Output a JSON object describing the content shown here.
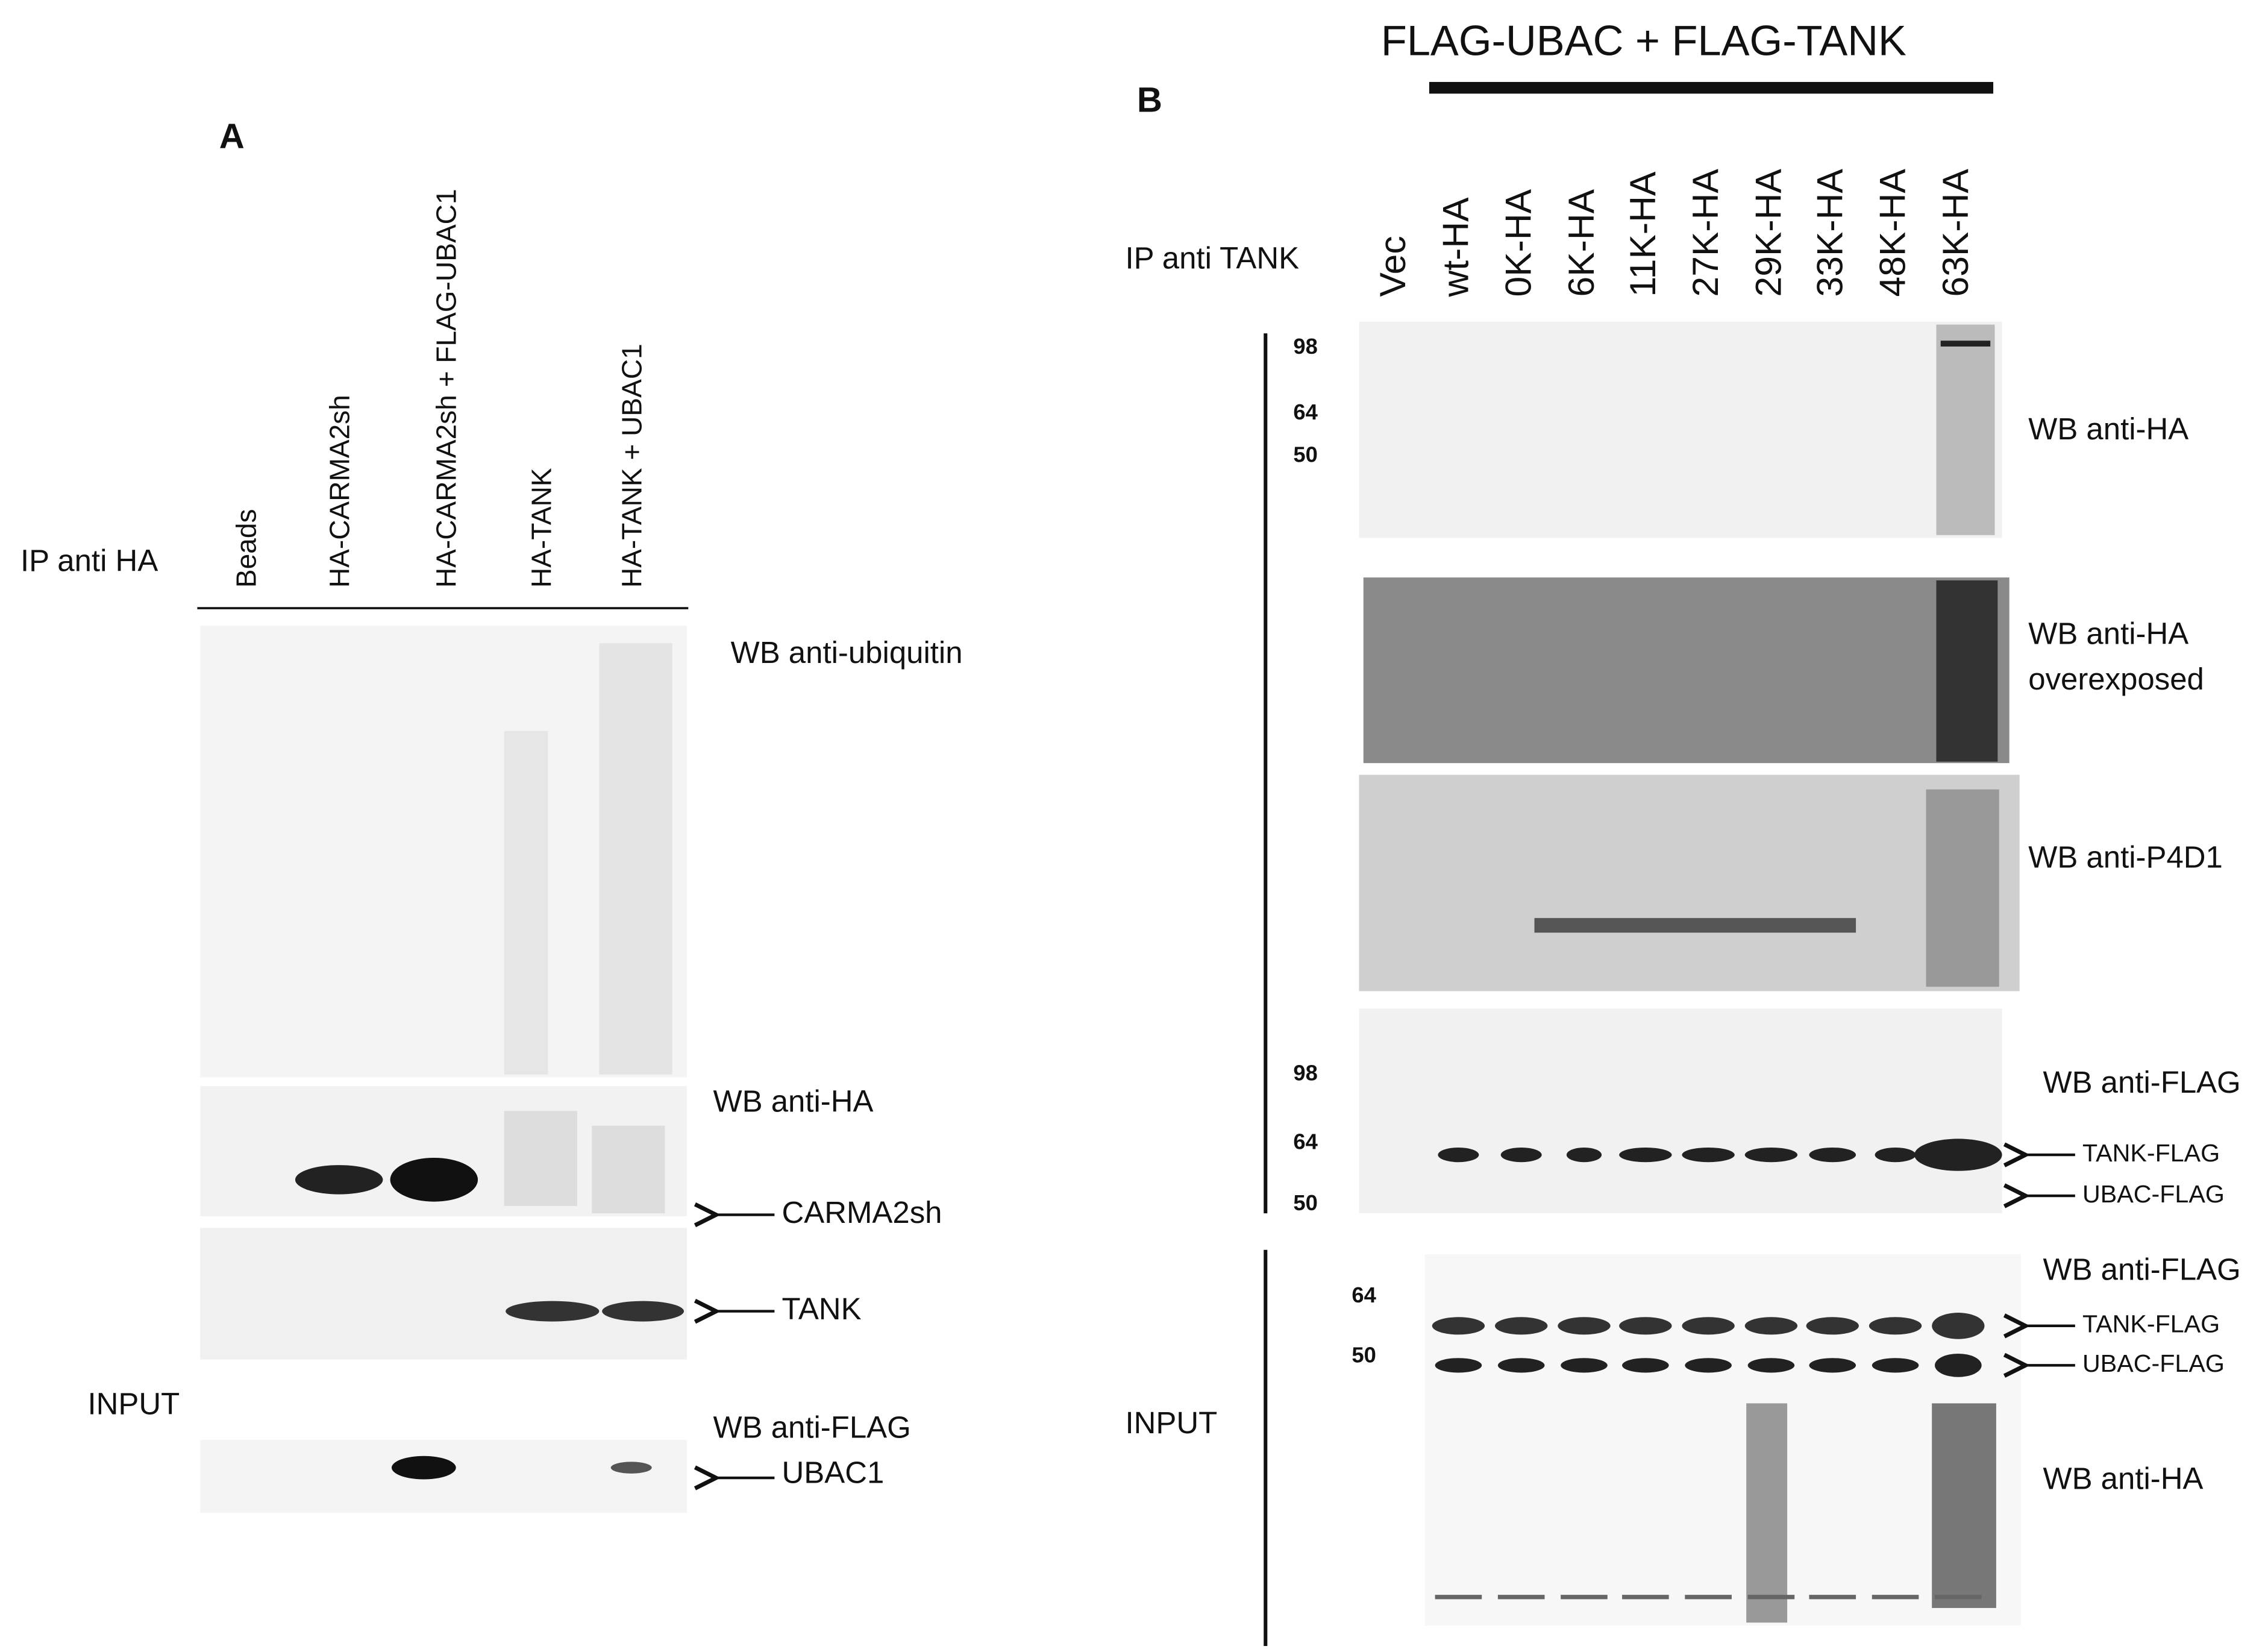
{
  "panel_a": {
    "label": "A",
    "ip_label": "IP anti HA",
    "lanes": [
      "Beads",
      "HA-CARMA2sh",
      "HA-CARMA2sh + FLAG-UBAC1",
      "HA-TANK",
      "HA-TANK + UBAC1"
    ],
    "blots": {
      "ubiquitin": "WB anti-ubiquitin",
      "ha": "WB anti-HA",
      "carma": "CARMA2sh",
      "tank": "TANK",
      "input": "INPUT",
      "flag": "WB anti-FLAG",
      "ubac": "UBAC1"
    }
  },
  "panel_b": {
    "label": "B",
    "header": "FLAG-UBAC + FLAG-TANK",
    "ip_label": "IP anti TANK",
    "lanes": [
      "Vec",
      "wt-HA",
      "0K-HA",
      "6K-HA",
      "11K-HA",
      "27K-HA",
      "29K-HA",
      "33K-HA",
      "48K-HA",
      "63K-HA"
    ],
    "blot1": {
      "markers": [
        "98",
        "64",
        "50"
      ],
      "label": "WB anti-HA"
    },
    "blot2": {
      "label": [
        "WB anti-HA",
        "overexposed"
      ]
    },
    "blot3": {
      "label": "WB anti-P4D1"
    },
    "blot4": {
      "markers": [
        "98",
        "64",
        "50"
      ],
      "label": "WB anti-FLAG",
      "arrows": [
        "TANK-FLAG",
        "UBAC-FLAG"
      ]
    },
    "input": {
      "label": "INPUT",
      "markers": [
        "64",
        "50"
      ],
      "flag_label": "WB anti-FLAG",
      "arrows": [
        "TANK-FLAG",
        "UBAC-FLAG"
      ],
      "ha_label": "WB anti-HA"
    }
  }
}
